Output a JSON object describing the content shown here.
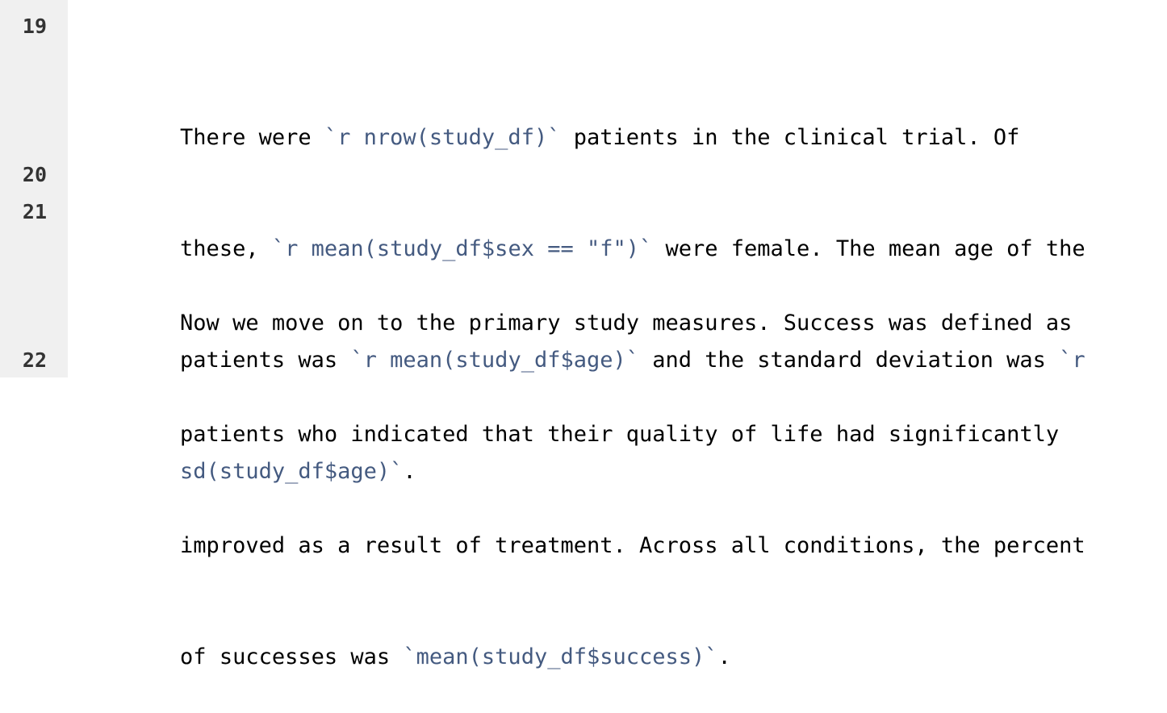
{
  "lines": [
    {
      "number": "19",
      "rows": [
        [
          {
            "type": "plain",
            "text": "There were "
          },
          {
            "type": "code",
            "text": "`r nrow(study_df)`"
          },
          {
            "type": "plain",
            "text": " patients in the clinical trial. Of"
          }
        ],
        [
          {
            "type": "plain",
            "text": "these, "
          },
          {
            "type": "code",
            "text": "`r mean(study_df$sex == \"f\")`"
          },
          {
            "type": "plain",
            "text": " were female. The mean age of the"
          }
        ],
        [
          {
            "type": "plain",
            "text": "patients was "
          },
          {
            "type": "code",
            "text": "`r mean(study_df$age)`"
          },
          {
            "type": "plain",
            "text": " and the standard deviation was "
          },
          {
            "type": "code",
            "text": "`r"
          }
        ],
        [
          {
            "type": "code",
            "text": "sd(study_df$age)`"
          },
          {
            "type": "plain",
            "text": "."
          }
        ]
      ]
    },
    {
      "number": "20",
      "rows": [
        []
      ]
    },
    {
      "number": "21",
      "rows": [
        [
          {
            "type": "plain",
            "text": "Now we move on to the primary study measures. Success was defined as"
          }
        ],
        [
          {
            "type": "plain",
            "text": "patients who indicated that their quality of life had significantly"
          }
        ],
        [
          {
            "type": "plain",
            "text": "improved as a result of treatment. Across all conditions, the percent"
          }
        ],
        [
          {
            "type": "plain",
            "text": "of successes was "
          },
          {
            "type": "code",
            "text": "`mean(study_df$success)`"
          },
          {
            "type": "plain",
            "text": "."
          }
        ]
      ]
    },
    {
      "number": "22",
      "rows": [
        []
      ]
    }
  ]
}
